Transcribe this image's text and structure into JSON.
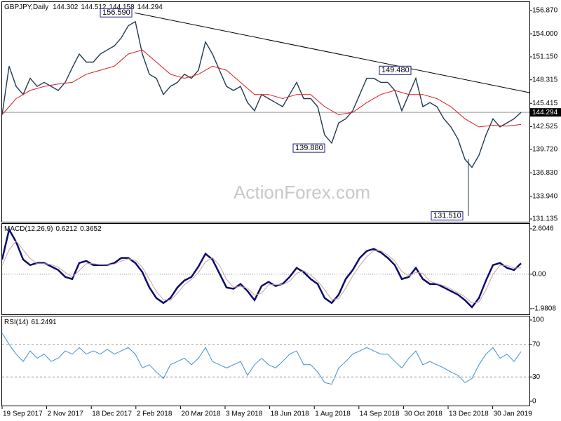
{
  "chart_data": [
    {
      "type": "line",
      "title": "GBPJPY,Daily",
      "ohlc": [
        144.302,
        144.512,
        144.158,
        144.294
      ],
      "series": [
        {
          "color": "#1f3a4f",
          "values": [
            144.0,
            150.0,
            147.5,
            146.5,
            148.5,
            147.5,
            148.0,
            147.5,
            147.0,
            148.0,
            149.8,
            151.5,
            150.5,
            150.5,
            151.5,
            152.0,
            152.5,
            153.5,
            155.0,
            155.5,
            151.5,
            149.0,
            148.5,
            146.5,
            147.5,
            148.0,
            149.0,
            148.5,
            149.5,
            153.0,
            151.5,
            149.5,
            147.5,
            147.0,
            147.5,
            145.5,
            144.5,
            146.5,
            146.0,
            145.5,
            145.0,
            146.5,
            148.0,
            146.0,
            146.0,
            145.0,
            141.5,
            140.5,
            143.0,
            143.5,
            144.5,
            146.5,
            148.5,
            148.5,
            148.0,
            148.0,
            147.0,
            144.5,
            146.5,
            148.5,
            145.0,
            145.5,
            145.0,
            143.5,
            142.5,
            141.0,
            138.5,
            137.5,
            139.0,
            141.5,
            143.5,
            142.5,
            143.0,
            143.5,
            144.294
          ]
        },
        {
          "color": "#e0191d",
          "values": [
            144.0,
            146.0,
            147.0,
            147.5,
            147.8,
            148.0,
            149.0,
            149.5,
            150.0,
            151.5,
            152.0,
            150.5,
            149.0,
            148.5,
            149.0,
            150.0,
            149.5,
            148.0,
            146.5,
            146.5,
            146.0,
            146.5,
            146.5,
            145.0,
            144.0,
            144.3,
            145.5,
            146.5,
            147.0,
            146.5,
            146.5,
            146.0,
            145.0,
            143.5,
            142.5,
            142.7,
            142.6,
            142.8
          ]
        }
      ],
      "ylim": [
        130.79,
        157.91
      ],
      "yticks": [
        {
          "value": 156.87,
          "label": "156.870"
        },
        {
          "value": 154.0,
          "label": "154.000"
        },
        {
          "value": 151.15,
          "label": "151.150"
        },
        {
          "value": 148.315,
          "label": "148.315"
        },
        {
          "value": 145.415,
          "label": "145.415"
        },
        {
          "value": 142.525,
          "label": "142.525"
        },
        {
          "value": 139.72,
          "label": "139.720"
        },
        {
          "value": 136.83,
          "label": "136.830"
        },
        {
          "value": 133.94,
          "label": "133.940"
        },
        {
          "value": 131.135,
          "label": "131.135"
        }
      ],
      "last_price": 144.294,
      "trendline": [
        156.59,
        146.73
      ],
      "annotations": [
        {
          "value": 156.59,
          "label": "156.590"
        },
        {
          "value": 149.48,
          "label": "149.480"
        },
        {
          "value": 139.88,
          "label": "139.880"
        },
        {
          "value": 131.51,
          "label": "131.510"
        }
      ],
      "watermark": "ActionForex.com"
    },
    {
      "type": "line",
      "title": "MACD(12,26,9)",
      "readout": [
        0.6212,
        0.3652
      ],
      "series": [
        {
          "color": "#0a0a6e",
          "values": [
            0.84,
            2.55,
            1.85,
            0.84,
            0.52,
            0.64,
            0.64,
            0.44,
            0.24,
            -0.16,
            -0.28,
            0.64,
            0.76,
            0.52,
            0.52,
            0.52,
            0.64,
            0.93,
            0.93,
            0.64,
            0.12,
            -0.76,
            -1.37,
            -1.65,
            -1.37,
            -0.76,
            -0.36,
            -0.16,
            0.44,
            1.17,
            0.84,
            0.04,
            -0.76,
            -0.84,
            -0.56,
            -0.97,
            -1.49,
            -0.68,
            -0.44,
            -0.68,
            -0.56,
            -0.16,
            0.36,
            0.12,
            -0.28,
            -0.56,
            -1.37,
            -1.65,
            -1.17,
            -0.28,
            0.24,
            0.93,
            1.33,
            1.45,
            1.25,
            0.93,
            0.52,
            -0.28,
            -0.16,
            0.36,
            -0.28,
            -0.56,
            -0.56,
            -0.76,
            -0.97,
            -1.17,
            -1.49,
            -1.89,
            -1.37,
            -0.36,
            0.52,
            0.64,
            0.36,
            0.24,
            0.62
          ]
        },
        {
          "color": "#c9a3a3",
          "values": [
            0.5,
            1.4,
            1.9,
            1.4,
            0.9,
            0.6,
            0.6,
            0.55,
            0.4,
            0.1,
            -0.15,
            0.2,
            0.6,
            0.6,
            0.55,
            0.52,
            0.58,
            0.75,
            0.88,
            0.8,
            0.4,
            -0.3,
            -1.0,
            -1.45,
            -1.5,
            -1.1,
            -0.6,
            -0.3,
            0.1,
            0.7,
            0.95,
            0.5,
            -0.3,
            -0.75,
            -0.7,
            -0.8,
            -1.2,
            -1.1,
            -0.6,
            -0.6,
            -0.6,
            -0.4,
            0.05,
            0.2,
            -0.05,
            -0.4,
            -0.9,
            -1.45,
            -1.4,
            -0.8,
            -0.1,
            0.5,
            1.0,
            1.35,
            1.35,
            1.1,
            0.75,
            0.15,
            -0.1,
            0.1,
            0.05,
            -0.4,
            -0.55,
            -0.65,
            -0.85,
            -1.05,
            -1.3,
            -1.65,
            -1.6,
            -0.9,
            0.0,
            0.5,
            0.5,
            0.35,
            0.37
          ]
        }
      ],
      "ylim": [
        -2.302,
        2.926
      ],
      "yticks": [
        2.6046,
        {
          "value": 0,
          "label": "0.00"
        },
        -1.9808
      ]
    },
    {
      "type": "line",
      "title": "RSI(14)",
      "readout": [
        61.2491
      ],
      "series": [
        {
          "color": "#3d8fd1",
          "values": [
            84,
            70,
            58,
            49,
            62,
            53,
            58,
            49,
            53,
            62,
            58,
            66,
            58,
            62,
            58,
            64,
            58,
            62,
            66,
            58,
            41,
            45,
            36,
            28,
            45,
            49,
            53,
            45,
            53,
            66,
            49,
            45,
            41,
            45,
            49,
            32,
            45,
            53,
            45,
            41,
            49,
            58,
            62,
            45,
            45,
            36,
            23,
            21,
            41,
            49,
            58,
            62,
            66,
            62,
            58,
            58,
            49,
            41,
            53,
            62,
            45,
            49,
            45,
            41,
            36,
            32,
            23,
            28,
            45,
            58,
            66,
            53,
            58,
            49,
            61.2491
          ]
        }
      ],
      "ylim": [
        -5.2,
        105.2
      ],
      "yticks": [
        100,
        70,
        30,
        0
      ],
      "levels": [
        70,
        30
      ],
      "xtick_labels": [
        "19 Sep 2017",
        "2 Nov 2017",
        "18 Dec 2017",
        "2 Feb 2018",
        "20 Mar 2018",
        "3 May 2018",
        "18 Jun 2018",
        "1 Aug 2018",
        "14 Sep 2018",
        "30 Oct 2018",
        "13 Dec 2018",
        "30 Jan 2019"
      ]
    }
  ]
}
